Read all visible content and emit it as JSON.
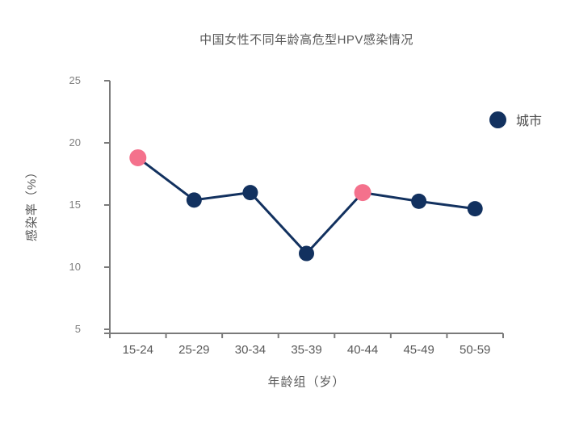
{
  "chart_data": {
    "type": "line",
    "title": "中国女性不同年龄高危型HPV感染情况",
    "xlabel": "年龄组（岁）",
    "ylabel": "感染率（%）",
    "categories": [
      "15-24",
      "25-29",
      "30-34",
      "35-39",
      "40-44",
      "45-49",
      "50-59"
    ],
    "series": [
      {
        "name": "城市",
        "values": [
          18.8,
          15.4,
          16.0,
          11.1,
          16.0,
          15.3,
          14.7
        ]
      }
    ],
    "highlighted_point_indices": [
      0,
      4
    ],
    "ylim": [
      5,
      25
    ],
    "yticks": [
      5,
      10,
      15,
      20,
      25
    ],
    "grid": false,
    "legend_position": "right",
    "colors": {
      "line": "#12315f",
      "point": "#12315f",
      "highlight_point": "#f4718c",
      "axis": "#7a7a7a",
      "tick_label": "#7f7f7f",
      "category_label": "#595959",
      "title_text": "#595959"
    }
  }
}
